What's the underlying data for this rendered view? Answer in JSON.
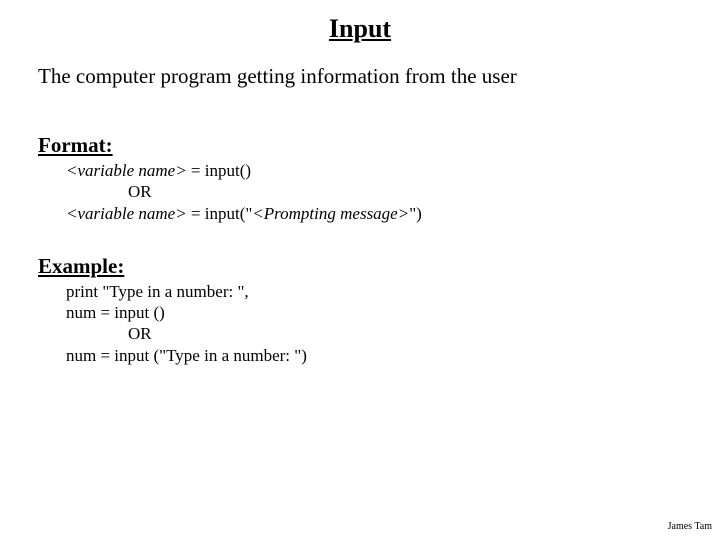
{
  "title": "Input",
  "description": "The computer program getting information from the user",
  "format": {
    "heading": "Format:",
    "line1_var": "<variable name>",
    "line1_rest": " = input()",
    "or": "OR",
    "line2_var": "<variable name>",
    "line2_mid": " = input(\"",
    "line2_prompt": "<Prompting message>",
    "line2_end": "\")"
  },
  "example": {
    "heading": "Example:",
    "line1": "print \"Type in a number: \",",
    "line2": "num = input ()",
    "or": "OR",
    "line3": "num = input (\"Type in a number: \")"
  },
  "author": "James Tam",
  "colors": {
    "background": "#ffffff",
    "text": "#000000"
  },
  "fonts": {
    "title_size_pt": 20,
    "body_size_pt": 16,
    "code_size_pt": 13
  }
}
